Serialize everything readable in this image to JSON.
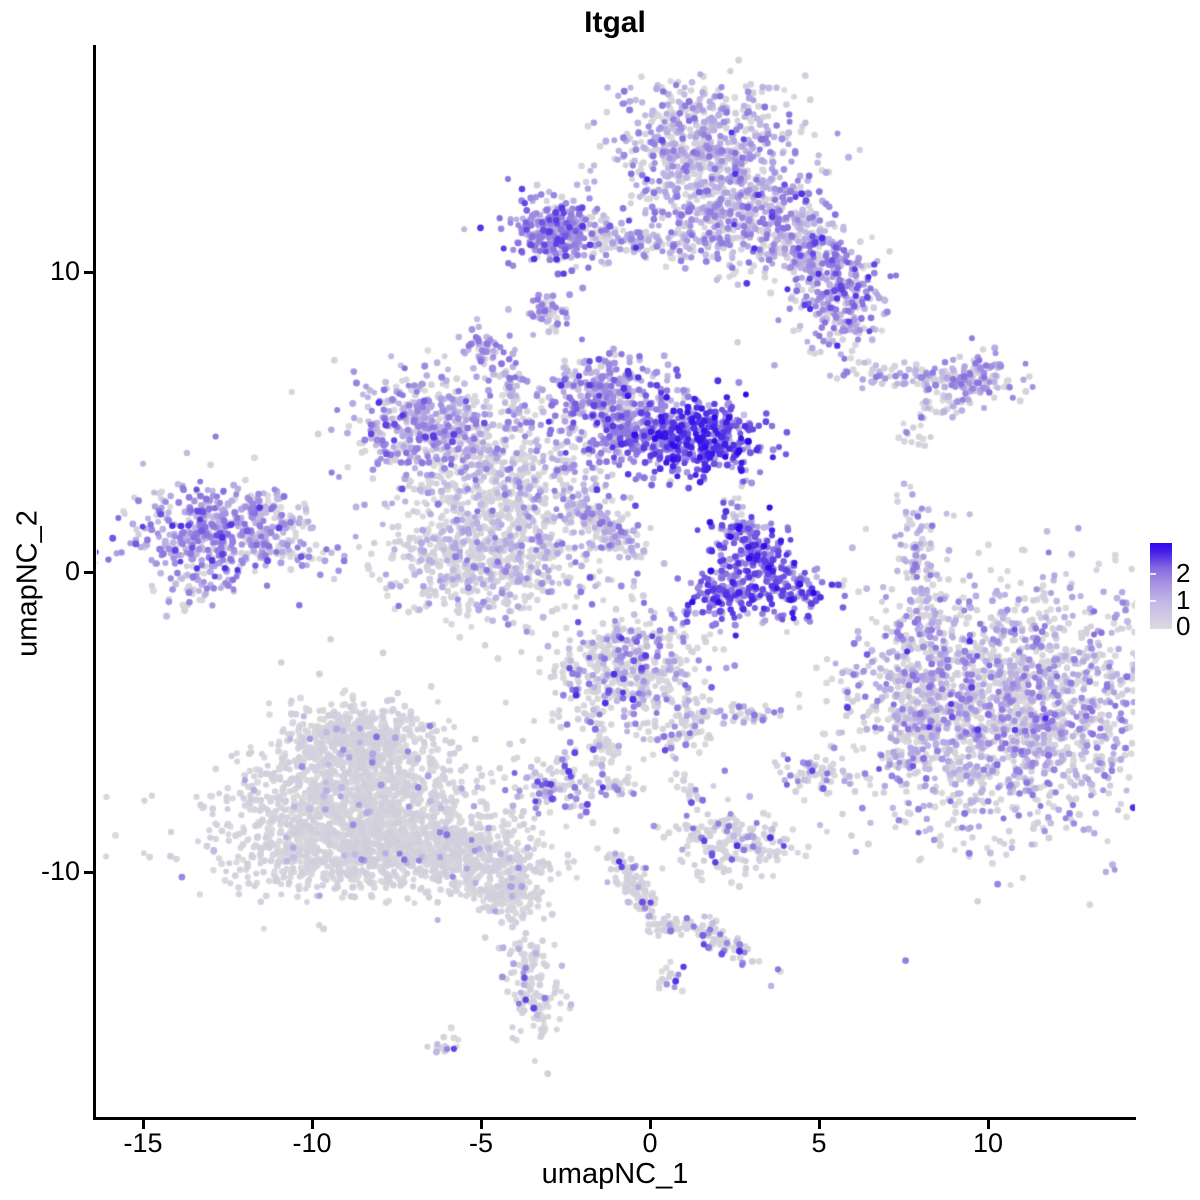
{
  "title": "Itgal",
  "axes": {
    "xlabel": "umapNC_1",
    "ylabel": "umapNC_2",
    "x_ticks": [
      "-15",
      "-10",
      "-5",
      "0",
      "5",
      "10"
    ],
    "y_ticks": [
      "10",
      "0",
      "-10"
    ]
  },
  "legend": {
    "labels": [
      "2",
      "1",
      "0"
    ],
    "low_color": "#dcdae0",
    "high_color": "#2e08ec"
  },
  "chart_data": {
    "type": "scatter",
    "title": "Itgal",
    "xlabel": "umapNC_1",
    "ylabel": "umapNC_2",
    "x_tick_values": [
      -15,
      -10,
      -5,
      0,
      5,
      10
    ],
    "y_tick_values": [
      10,
      0,
      -10
    ],
    "xlim": [
      -16.4,
      14.3
    ],
    "ylim": [
      -18.2,
      17.5
    ],
    "grid": false,
    "legend_position": "right",
    "colorbar": {
      "values_top_to_bottom": [
        2,
        1,
        0
      ],
      "gradient_low": "#dbdbdb",
      "gradient_mid": "#8971df",
      "gradient_high": "#2d0ae9"
    },
    "point_color_stops": [
      [
        0.0,
        219,
        219,
        219
      ],
      [
        0.35,
        184,
        174,
        227
      ],
      [
        0.65,
        137,
        113,
        223
      ],
      [
        1.0,
        45,
        10,
        233
      ]
    ],
    "expression_bands": {
      "g": [
        0.0,
        0.1
      ],
      "l": [
        0.22,
        0.42
      ],
      "m": [
        0.46,
        0.66
      ],
      "s": [
        0.7,
        0.88
      ],
      "d": [
        0.9,
        1.0
      ]
    },
    "clusters": [
      {
        "id": "top-blob",
        "x": 1.6,
        "y": 14.2,
        "sx": 1.35,
        "sy": 1.05,
        "rot": 0,
        "n": 620,
        "mix": {
          "g": 0.42,
          "l": 0.38,
          "m": 0.18,
          "s": 0.02
        }
      },
      {
        "id": "top-wing",
        "x": 2.9,
        "y": 11.7,
        "sx": 1.5,
        "sy": 0.95,
        "rot": -15,
        "n": 520,
        "mix": {
          "g": 0.36,
          "l": 0.36,
          "m": 0.25,
          "s": 0.03
        }
      },
      {
        "id": "top-right-arm",
        "x": 4.9,
        "y": 10.7,
        "sx": 0.8,
        "sy": 0.45,
        "rot": -35,
        "n": 150,
        "mix": {
          "g": 0.3,
          "l": 0.35,
          "m": 0.3,
          "s": 0.05
        }
      },
      {
        "id": "top-right-sub",
        "x": 5.6,
        "y": 9.0,
        "sx": 0.7,
        "sy": 0.85,
        "rot": 0,
        "n": 230,
        "mix": {
          "g": 0.28,
          "l": 0.3,
          "m": 0.34,
          "s": 0.08
        }
      },
      {
        "id": "top-left-arm",
        "x": -2.7,
        "y": 11.4,
        "sx": 0.75,
        "sy": 0.6,
        "rot": -10,
        "n": 280,
        "mix": {
          "g": 0.12,
          "l": 0.28,
          "m": 0.48,
          "s": 0.12
        }
      },
      {
        "id": "top-bridge",
        "x": -0.7,
        "y": 11.1,
        "sx": 1.3,
        "sy": 0.3,
        "rot": -3,
        "n": 130,
        "mix": {
          "g": 0.5,
          "l": 0.3,
          "m": 0.2
        }
      },
      {
        "id": "small-blob-upper",
        "x": -3.0,
        "y": 8.6,
        "sx": 0.28,
        "sy": 0.38,
        "rot": 20,
        "n": 45,
        "mix": {
          "g": 0.3,
          "l": 0.4,
          "m": 0.3
        }
      },
      {
        "id": "strand-right",
        "x": 8.1,
        "y": 6.45,
        "sx": 1.5,
        "sy": 0.22,
        "rot": -4,
        "n": 130,
        "mix": {
          "g": 0.5,
          "l": 0.35,
          "m": 0.15
        }
      },
      {
        "id": "strand-right-clump",
        "x": 9.7,
        "y": 6.5,
        "sx": 0.55,
        "sy": 0.4,
        "rot": 0,
        "n": 90,
        "mix": {
          "g": 0.3,
          "l": 0.35,
          "m": 0.3,
          "s": 0.05
        }
      },
      {
        "id": "strand-right-tail",
        "x": 8.6,
        "y": 5.5,
        "sx": 0.4,
        "sy": 0.25,
        "rot": 30,
        "n": 28,
        "mix": {
          "g": 0.6,
          "l": 0.3,
          "m": 0.1
        }
      },
      {
        "id": "central-left-lobe",
        "x": -6.8,
        "y": 4.9,
        "sx": 1.05,
        "sy": 0.95,
        "rot": 0,
        "n": 400,
        "mix": {
          "g": 0.28,
          "l": 0.42,
          "m": 0.27,
          "s": 0.03
        }
      },
      {
        "id": "central-grey-web",
        "x": -4.2,
        "y": 2.9,
        "sx": 1.6,
        "sy": 1.4,
        "rot": 0,
        "n": 650,
        "mix": {
          "g": 0.66,
          "l": 0.25,
          "m": 0.09
        }
      },
      {
        "id": "central-strand-up",
        "x": -4.1,
        "y": 5.9,
        "sx": 0.18,
        "sy": 0.75,
        "rot": 0,
        "n": 40,
        "mix": {
          "g": 0.4,
          "l": 0.35,
          "m": 0.25
        }
      },
      {
        "id": "central-blob-up",
        "x": -4.85,
        "y": 7.3,
        "sx": 0.3,
        "sy": 0.4,
        "rot": 0,
        "n": 50,
        "mix": {
          "g": 0.25,
          "l": 0.45,
          "m": 0.3
        }
      },
      {
        "id": "central-funnel",
        "x": -1.4,
        "y": 6.1,
        "sx": 0.8,
        "sy": 0.6,
        "rot": 0,
        "n": 210,
        "mix": {
          "g": 0.22,
          "l": 0.4,
          "m": 0.33,
          "s": 0.05
        }
      },
      {
        "id": "central-strong-left",
        "x": -0.6,
        "y": 4.8,
        "sx": 0.95,
        "sy": 0.8,
        "rot": 0,
        "n": 320,
        "mix": {
          "g": 0.1,
          "l": 0.28,
          "m": 0.45,
          "s": 0.17
        }
      },
      {
        "id": "central-strong-right",
        "x": 1.7,
        "y": 4.4,
        "sx": 0.9,
        "sy": 0.65,
        "rot": 0,
        "n": 340,
        "mix": {
          "l": 0.08,
          "m": 0.3,
          "s": 0.45,
          "d": 0.17
        }
      },
      {
        "id": "central-diag-strand",
        "x": -1.4,
        "y": 1.55,
        "sx": 0.85,
        "sy": 0.25,
        "rot": -41,
        "n": 130,
        "mix": {
          "g": 0.55,
          "l": 0.3,
          "m": 0.15
        }
      },
      {
        "id": "central-bottom-lobe",
        "x": -4.9,
        "y": 0.4,
        "sx": 1.5,
        "sy": 1.05,
        "rot": 0,
        "n": 560,
        "mix": {
          "g": 0.72,
          "l": 0.22,
          "m": 0.06
        }
      },
      {
        "id": "left-main",
        "x": -13.0,
        "y": 1.2,
        "sx": 1.15,
        "sy": 0.85,
        "rot": 0,
        "n": 430,
        "mix": {
          "g": 0.16,
          "l": 0.4,
          "m": 0.38,
          "s": 0.06
        }
      },
      {
        "id": "left-arm-upper",
        "x": -11.3,
        "y": 2.0,
        "sx": 0.7,
        "sy": 0.25,
        "rot": -25,
        "n": 60,
        "mix": {
          "g": 0.35,
          "l": 0.35,
          "m": 0.3
        }
      },
      {
        "id": "left-arm-lower",
        "x": -11.0,
        "y": 0.8,
        "sx": 0.85,
        "sy": 0.3,
        "rot": -8,
        "n": 80,
        "mix": {
          "g": 0.45,
          "l": 0.3,
          "m": 0.25
        }
      },
      {
        "id": "left-below-dots",
        "x": -13.5,
        "y": -0.6,
        "sx": 0.5,
        "sy": 0.35,
        "rot": 0,
        "n": 30,
        "mix": {
          "g": 0.5,
          "l": 0.3,
          "m": 0.2
        }
      },
      {
        "id": "crescent-top",
        "x": 2.9,
        "y": 0.9,
        "sx": 0.6,
        "sy": 0.55,
        "rot": 0,
        "n": 140,
        "mix": {
          "l": 0.15,
          "m": 0.35,
          "s": 0.4,
          "d": 0.1
        }
      },
      {
        "id": "crescent-left",
        "x": 2.2,
        "y": -0.8,
        "sx": 0.6,
        "sy": 0.45,
        "rot": 20,
        "n": 130,
        "mix": {
          "l": 0.2,
          "m": 0.4,
          "s": 0.35,
          "d": 0.05
        }
      },
      {
        "id": "crescent-right",
        "x": 3.9,
        "y": -0.5,
        "sx": 0.75,
        "sy": 0.55,
        "rot": -15,
        "n": 150,
        "mix": {
          "l": 0.12,
          "m": 0.35,
          "s": 0.42,
          "d": 0.11
        }
      },
      {
        "id": "crescent-connector",
        "x": 2.6,
        "y": 1.9,
        "sx": 0.25,
        "sy": 0.6,
        "rot": 0,
        "n": 25,
        "mix": {
          "g": 0.4,
          "l": 0.3,
          "m": 0.3
        }
      },
      {
        "id": "vertical-strand",
        "x": 8.0,
        "y": 0.2,
        "sx": 0.26,
        "sy": 1.15,
        "rot": 8,
        "n": 95,
        "mix": {
          "g": 0.52,
          "l": 0.36,
          "m": 0.12
        }
      },
      {
        "id": "vertical-strand-top",
        "x": 7.75,
        "y": 4.45,
        "sx": 0.28,
        "sy": 0.22,
        "rot": 0,
        "n": 14,
        "mix": {
          "g": 0.7,
          "l": 0.1,
          "m": 0.2
        }
      },
      {
        "id": "bottom-right-main",
        "x": 10.4,
        "y": -4.6,
        "sx": 2.3,
        "sy": 2.1,
        "rot": 0,
        "n": 1900,
        "mix": {
          "g": 0.56,
          "l": 0.28,
          "m": 0.15,
          "s": 0.01
        }
      },
      {
        "id": "bottom-right-left-arm",
        "x": 7.9,
        "y": -4.4,
        "sx": 0.5,
        "sy": 1.15,
        "rot": 0,
        "n": 150,
        "mix": {
          "g": 0.62,
          "l": 0.28,
          "m": 0.1
        }
      },
      {
        "id": "bottom-right-sparse",
        "x": 7.9,
        "y": -1.8,
        "sx": 0.6,
        "sy": 0.6,
        "rot": 0,
        "n": 25,
        "mix": {
          "g": 0.8,
          "l": 0.1,
          "m": 0.1
        }
      },
      {
        "id": "mid-cluster",
        "x": -0.5,
        "y": -3.2,
        "sx": 1.2,
        "sy": 1.05,
        "rot": 0,
        "n": 470,
        "mix": {
          "g": 0.63,
          "l": 0.2,
          "m": 0.12,
          "s": 0.05
        }
      },
      {
        "id": "mid-tail",
        "x": 1.0,
        "y": -5.2,
        "sx": 0.45,
        "sy": 0.55,
        "rot": -30,
        "n": 70,
        "mix": {
          "g": 0.8,
          "l": 0.1,
          "m": 0.1
        }
      },
      {
        "id": "mid-connector",
        "x": -1.4,
        "y": -5.6,
        "sx": 0.3,
        "sy": 0.7,
        "rot": 25,
        "n": 45,
        "mix": {
          "g": 0.85,
          "l": 0.1,
          "m": 0.05
        }
      },
      {
        "id": "mid-clump",
        "x": -2.7,
        "y": -7.0,
        "sx": 0.7,
        "sy": 0.5,
        "rot": 0,
        "n": 110,
        "mix": {
          "g": 0.5,
          "l": 0.2,
          "m": 0.15,
          "s": 0.15
        }
      },
      {
        "id": "mid-bits",
        "x": -0.9,
        "y": -7.2,
        "sx": 0.4,
        "sy": 0.25,
        "rot": 0,
        "n": 22,
        "mix": {
          "g": 0.85,
          "l": 0.05,
          "m": 0.05,
          "s": 0.05
        }
      },
      {
        "id": "small-strand-a",
        "x": 2.7,
        "y": -4.7,
        "sx": 0.5,
        "sy": 0.22,
        "rot": 0,
        "n": 35,
        "mix": {
          "g": 0.72,
          "l": 0.1,
          "m": 0.1,
          "s": 0.08
        }
      },
      {
        "id": "small-cluster-b",
        "x": 5.0,
        "y": -6.8,
        "sx": 0.55,
        "sy": 0.3,
        "rot": -10,
        "n": 60,
        "mix": {
          "g": 0.6,
          "l": 0.15,
          "m": 0.15,
          "s": 0.1
        }
      },
      {
        "id": "tiny-c",
        "x": 1.2,
        "y": -7.3,
        "sx": 0.25,
        "sy": 0.2,
        "rot": 0,
        "n": 18,
        "mix": {
          "g": 0.85,
          "m": 0.1,
          "s": 0.05
        }
      },
      {
        "id": "bottom-left-top",
        "x": -8.6,
        "y": -5.5,
        "sx": 1.05,
        "sy": 0.6,
        "rot": 0,
        "n": 420,
        "mix": {
          "g": 0.96,
          "l": 0.03,
          "m": 0.01
        }
      },
      {
        "id": "bottom-left-mid",
        "x": -8.8,
        "y": -7.3,
        "sx": 1.7,
        "sy": 1.0,
        "rot": 0,
        "n": 950,
        "mix": {
          "g": 0.965,
          "l": 0.02,
          "m": 0.015
        }
      },
      {
        "id": "bottom-left-bot",
        "x": -8.3,
        "y": -9.2,
        "sx": 2.2,
        "sy": 0.8,
        "rot": 0,
        "n": 1050,
        "mix": {
          "g": 0.97,
          "l": 0.02,
          "m": 0.01
        }
      },
      {
        "id": "bottom-left-tail",
        "x": -5.2,
        "y": -9.6,
        "sx": 1.05,
        "sy": 0.55,
        "rot": -12,
        "n": 300,
        "mix": {
          "g": 0.96,
          "l": 0.02,
          "m": 0.02
        }
      },
      {
        "id": "bottom-left-tip",
        "x": -4.3,
        "y": -10.8,
        "sx": 0.5,
        "sy": 0.4,
        "rot": 0,
        "n": 120,
        "mix": {
          "g": 0.97,
          "l": 0.03
        }
      },
      {
        "id": "lower-mid-cluster",
        "x": 2.4,
        "y": -9.0,
        "sx": 0.9,
        "sy": 0.55,
        "rot": -8,
        "n": 190,
        "mix": {
          "g": 0.84,
          "l": 0.06,
          "m": 0.05,
          "s": 0.05
        }
      },
      {
        "id": "lower-diag-strand",
        "x": -0.5,
        "y": -10.4,
        "sx": 0.7,
        "sy": 0.22,
        "rot": -67,
        "n": 115,
        "mix": {
          "g": 0.84,
          "l": 0.06,
          "m": 0.06,
          "s": 0.04
        }
      },
      {
        "id": "lower-arm",
        "x": 0.7,
        "y": -11.8,
        "sx": 0.5,
        "sy": 0.15,
        "rot": -6,
        "n": 40,
        "mix": {
          "g": 0.92,
          "l": 0.05,
          "m": 0.03
        }
      },
      {
        "id": "lower-strand-2",
        "x": 2.05,
        "y": -12.25,
        "sx": 0.7,
        "sy": 0.22,
        "rot": -31,
        "n": 70,
        "mix": {
          "g": 0.74,
          "l": 0.1,
          "m": 0.1,
          "s": 0.06
        }
      },
      {
        "id": "trail-dots",
        "x": -4.05,
        "y": -11.3,
        "sx": 0.12,
        "sy": 1.0,
        "rot": 0,
        "n": 16,
        "mix": {
          "g": 0.9,
          "l": 0.1
        }
      },
      {
        "id": "bottom-vertical-blob",
        "x": -3.5,
        "y": -13.7,
        "sx": 0.38,
        "sy": 1.05,
        "rot": 10,
        "n": 130,
        "mix": {
          "g": 0.85,
          "l": 0.06,
          "m": 0.05,
          "s": 0.04
        }
      },
      {
        "id": "bottom-tiny",
        "x": -6.1,
        "y": -15.8,
        "sx": 0.3,
        "sy": 0.15,
        "rot": 35,
        "n": 16,
        "mix": {
          "g": 0.65,
          "l": 0.1,
          "m": 0.15,
          "s": 0.1
        }
      },
      {
        "id": "bottom-tiny-2",
        "x": 0.5,
        "y": -13.6,
        "sx": 0.25,
        "sy": 0.3,
        "rot": 0,
        "n": 18,
        "mix": {
          "g": 0.8,
          "m": 0.1,
          "s": 0.1
        }
      }
    ],
    "singles": [
      {
        "x": -10.6,
        "y": 6.0,
        "t": 0.05
      },
      {
        "x": 4.05,
        "y": -2.0,
        "t": 0.05
      },
      {
        "x": 2.2,
        "y": 2.4,
        "t": 0.05
      },
      {
        "x": 2.4,
        "y": 1.5,
        "t": 0.05
      },
      {
        "x": 8.0,
        "y": -1.2,
        "t": 0.05
      }
    ]
  }
}
